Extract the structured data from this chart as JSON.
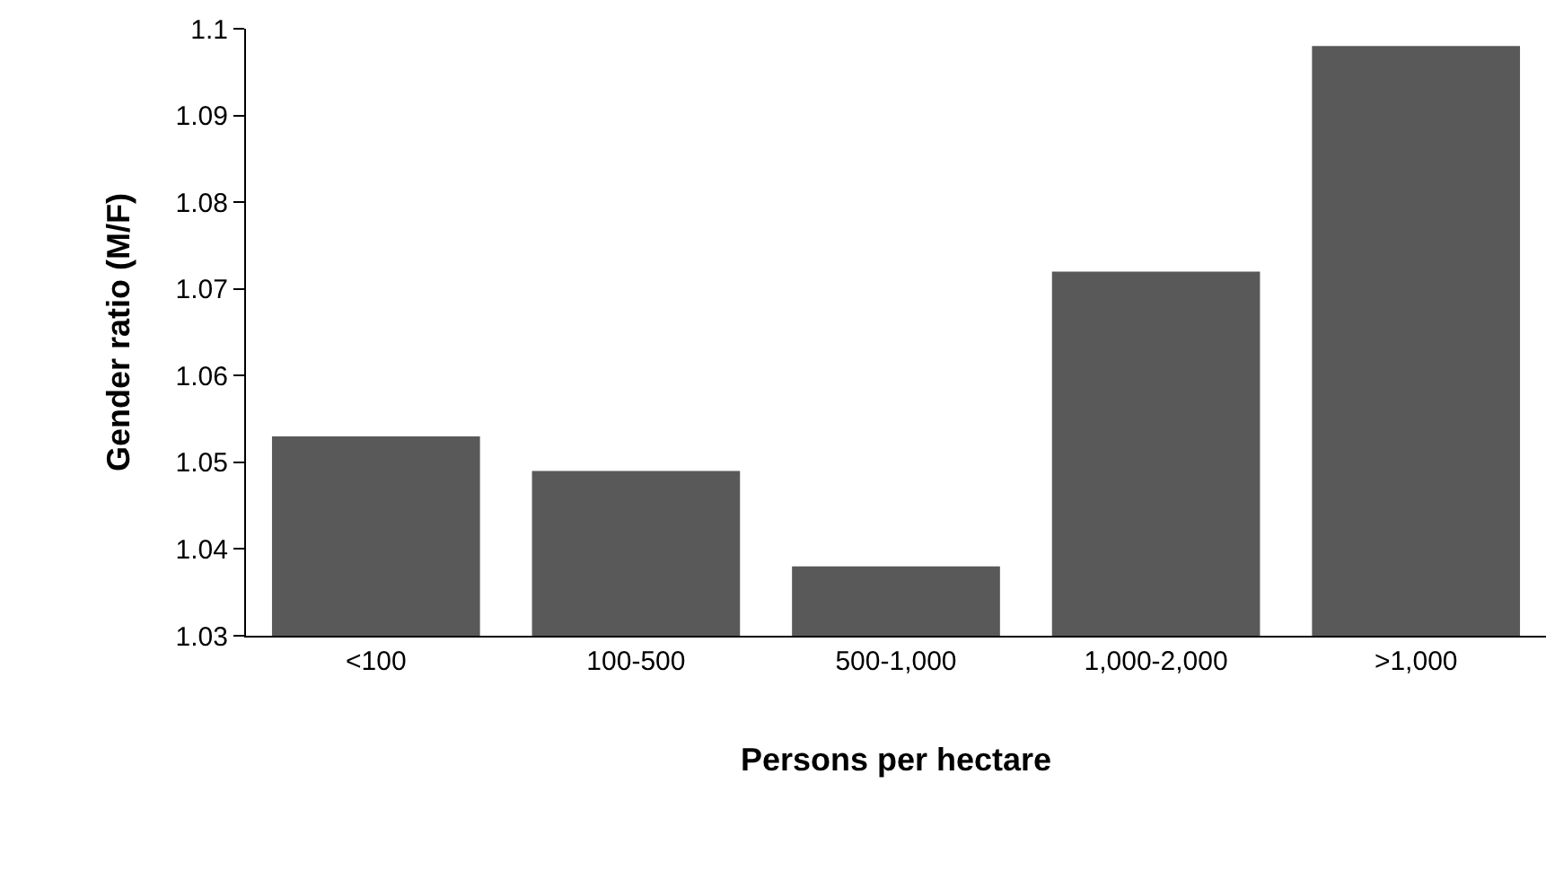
{
  "chart_data": {
    "type": "bar",
    "xlabel": "Persons per hectare",
    "ylabel": "Gender ratio (M/F)",
    "categories": [
      "<100",
      "100-500",
      "500-1,000",
      "1,000-2,000",
      ">1,000"
    ],
    "values": [
      1.053,
      1.049,
      1.038,
      1.072,
      1.098
    ],
    "color": "#595959",
    "ylim": [
      1.03,
      1.1
    ],
    "yticks": [
      1.03,
      1.04,
      1.05,
      1.06,
      1.07,
      1.08,
      1.09,
      1.1
    ]
  }
}
